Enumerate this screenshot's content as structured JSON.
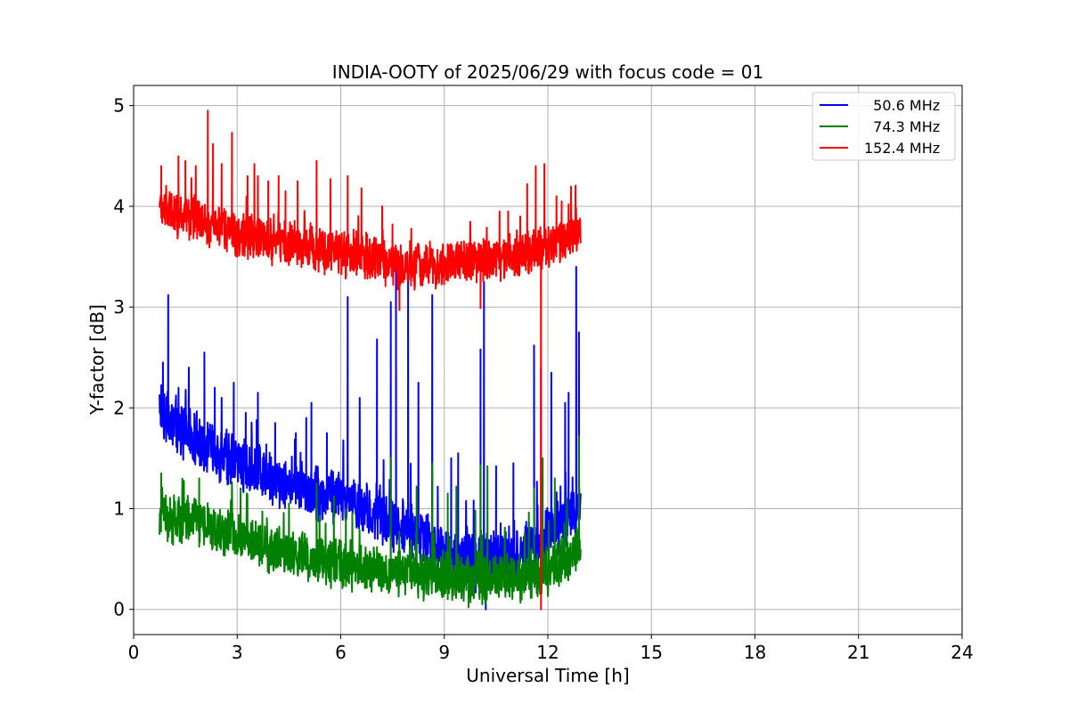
{
  "chart_data": {
    "type": "line",
    "title": "INDIA-OOTY of 2025/06/29 with focus code = 01",
    "xlabel": "Universal Time [h]",
    "ylabel": "Y-factor [dB]",
    "xlim": [
      0,
      24
    ],
    "ylim": [
      -0.25,
      5.2
    ],
    "xticks": [
      0,
      3,
      6,
      9,
      12,
      15,
      18,
      21,
      24
    ],
    "yticks": [
      0,
      1,
      2,
      3,
      4,
      5
    ],
    "grid": true,
    "legend_position": "top-right",
    "series": [
      {
        "name": "  50.6 MHz",
        "color": "#0000ff",
        "base": [
          [
            0.75,
            2.05
          ],
          [
            1.0,
            1.9
          ],
          [
            2.0,
            1.65
          ],
          [
            3.0,
            1.45
          ],
          [
            4.0,
            1.3
          ],
          [
            5.0,
            1.2
          ],
          [
            6.0,
            1.1
          ],
          [
            7.0,
            0.95
          ],
          [
            8.0,
            0.8
          ],
          [
            8.5,
            0.7
          ],
          [
            9.0,
            0.6
          ],
          [
            9.5,
            0.5
          ],
          [
            10.0,
            0.45
          ],
          [
            10.5,
            0.5
          ],
          [
            11.0,
            0.55
          ],
          [
            11.5,
            0.6
          ],
          [
            12.0,
            0.75
          ],
          [
            12.5,
            0.9
          ],
          [
            12.95,
            1.05
          ]
        ],
        "noise": 0.32,
        "spikes": [
          [
            0.85,
            2.45
          ],
          [
            1.0,
            3.12
          ],
          [
            1.3,
            2.2
          ],
          [
            1.6,
            2.4
          ],
          [
            2.05,
            2.55
          ],
          [
            2.35,
            2.2
          ],
          [
            2.55,
            2.1
          ],
          [
            2.9,
            2.25
          ],
          [
            3.25,
            1.95
          ],
          [
            3.6,
            2.15
          ],
          [
            4.1,
            1.85
          ],
          [
            4.7,
            1.75
          ],
          [
            5.0,
            1.9
          ],
          [
            5.15,
            2.05
          ],
          [
            5.6,
            1.75
          ],
          [
            6.2,
            3.1
          ],
          [
            6.55,
            2.1
          ],
          [
            7.05,
            2.68
          ],
          [
            7.45,
            3.05
          ],
          [
            7.6,
            3.52
          ],
          [
            7.95,
            3.38
          ],
          [
            8.25,
            2.25
          ],
          [
            8.65,
            3.12
          ],
          [
            9.2,
            1.5
          ],
          [
            9.4,
            1.55
          ],
          [
            9.85,
            1.08
          ],
          [
            10.05,
            2.58
          ],
          [
            10.15,
            3.25
          ],
          [
            10.5,
            1.42
          ],
          [
            11.0,
            1.45
          ],
          [
            11.6,
            2.62
          ],
          [
            11.8,
            2.4
          ],
          [
            12.1,
            2.35
          ],
          [
            12.5,
            2.05
          ],
          [
            12.6,
            2.15
          ],
          [
            12.82,
            3.4
          ],
          [
            12.9,
            2.75
          ]
        ],
        "min": [
          [
            10.2,
            0.0
          ]
        ]
      },
      {
        "name": "  74.3 MHz",
        "color": "#008000",
        "base": [
          [
            0.75,
            0.95
          ],
          [
            1.0,
            0.9
          ],
          [
            2.0,
            0.85
          ],
          [
            3.0,
            0.7
          ],
          [
            4.0,
            0.6
          ],
          [
            5.0,
            0.5
          ],
          [
            6.0,
            0.45
          ],
          [
            7.0,
            0.4
          ],
          [
            8.0,
            0.38
          ],
          [
            8.5,
            0.35
          ],
          [
            9.0,
            0.32
          ],
          [
            9.5,
            0.3
          ],
          [
            10.0,
            0.3
          ],
          [
            10.5,
            0.32
          ],
          [
            11.0,
            0.3
          ],
          [
            11.5,
            0.32
          ],
          [
            12.0,
            0.38
          ],
          [
            12.5,
            0.48
          ],
          [
            12.95,
            0.62
          ]
        ],
        "noise": 0.28,
        "spikes": [
          [
            0.8,
            1.35
          ],
          [
            1.9,
            1.3
          ],
          [
            3.1,
            1.2
          ],
          [
            4.5,
            1.05
          ],
          [
            5.3,
            1.25
          ],
          [
            5.8,
            1.12
          ],
          [
            6.15,
            1.0
          ],
          [
            7.45,
            1.5
          ],
          [
            8.2,
            1.22
          ],
          [
            8.65,
            1.45
          ],
          [
            9.1,
            1.15
          ],
          [
            9.35,
            1.22
          ],
          [
            9.9,
            0.98
          ],
          [
            10.05,
            1.43
          ],
          [
            10.25,
            1.42
          ],
          [
            11.45,
            0.96
          ],
          [
            11.6,
            1.2
          ],
          [
            11.85,
            1.5
          ],
          [
            12.2,
            1.3
          ],
          [
            12.55,
            1.1
          ],
          [
            12.9,
            1.72
          ]
        ],
        "min": [
          [
            9.7,
            0.02
          ],
          [
            10.1,
            0.05
          ]
        ]
      },
      {
        "name": "152.4 MHz",
        "color": "#ff0000",
        "base": [
          [
            0.75,
            4.0
          ],
          [
            1.0,
            3.95
          ],
          [
            2.0,
            3.85
          ],
          [
            3.0,
            3.72
          ],
          [
            4.0,
            3.65
          ],
          [
            5.0,
            3.6
          ],
          [
            6.0,
            3.55
          ],
          [
            7.0,
            3.48
          ],
          [
            7.5,
            3.42
          ],
          [
            8.0,
            3.4
          ],
          [
            9.0,
            3.42
          ],
          [
            9.5,
            3.45
          ],
          [
            10.0,
            3.48
          ],
          [
            11.0,
            3.5
          ],
          [
            11.5,
            3.55
          ],
          [
            12.0,
            3.6
          ],
          [
            12.5,
            3.68
          ],
          [
            12.95,
            3.8
          ]
        ],
        "noise": 0.26,
        "spikes": [
          [
            0.8,
            4.4
          ],
          [
            1.3,
            4.22
          ],
          [
            1.5,
            4.45
          ],
          [
            1.8,
            4.4
          ],
          [
            2.15,
            4.95
          ],
          [
            2.3,
            4.62
          ],
          [
            2.55,
            4.42
          ],
          [
            2.85,
            4.73
          ],
          [
            3.3,
            4.3
          ],
          [
            3.5,
            4.42
          ],
          [
            3.6,
            4.3
          ],
          [
            3.9,
            4.25
          ],
          [
            4.2,
            4.3
          ],
          [
            4.4,
            4.15
          ],
          [
            4.75,
            4.25
          ],
          [
            5.3,
            4.45
          ],
          [
            5.7,
            4.27
          ],
          [
            6.2,
            4.3
          ],
          [
            6.6,
            4.18
          ],
          [
            7.2,
            4.0
          ],
          [
            7.5,
            3.82
          ],
          [
            10.6,
            3.95
          ],
          [
            10.85,
            3.95
          ],
          [
            11.2,
            3.9
          ],
          [
            11.4,
            4.22
          ],
          [
            11.65,
            4.4
          ],
          [
            11.9,
            4.42
          ],
          [
            12.25,
            4.1
          ],
          [
            12.4,
            4.05
          ],
          [
            12.6,
            4.02
          ]
        ],
        "min": [
          [
            7.7,
            2.97
          ],
          [
            10.05,
            2.99
          ],
          [
            11.8,
            0.0
          ]
        ]
      }
    ]
  }
}
